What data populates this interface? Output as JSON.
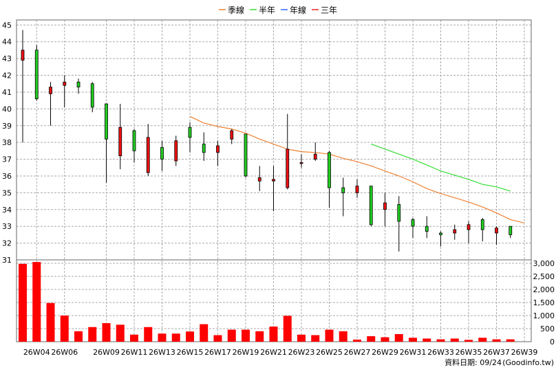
{
  "legend": [
    {
      "label": "季線",
      "color": "#f08030"
    },
    {
      "label": "半年",
      "color": "#33dd33"
    },
    {
      "label": "年線",
      "color": "#3366ff"
    },
    {
      "label": "三年",
      "color": "#ee2222"
    }
  ],
  "footer": {
    "date_label": "資料日期: 09/24",
    "source": "(Goodinfo.tw)"
  },
  "chart_data": {
    "type": "candlestick",
    "colors": {
      "up": "#ee1111",
      "down": "#22cc22",
      "volume": "#ff0000",
      "grid": "#aaaaaa"
    },
    "price_axis": {
      "ylim": [
        31,
        45.3
      ],
      "ticks": [
        31,
        32,
        33,
        34,
        35,
        36,
        37,
        38,
        39,
        40,
        41,
        42,
        43,
        44,
        45
      ]
    },
    "volume_axis": {
      "ylim": [
        0,
        3000
      ],
      "ticks": [
        0,
        500,
        1000,
        1500,
        2000,
        2500,
        3000
      ],
      "tick_labels": [
        "0",
        "500",
        "1,000",
        "1,500",
        "2,000",
        "2,500",
        "3,000"
      ]
    },
    "x_tick_labels": [
      {
        "week": 4,
        "label": "26W04"
      },
      {
        "week": 6,
        "label": "26W06"
      },
      {
        "week": 9,
        "label": "26W09"
      },
      {
        "week": 11,
        "label": "26W11"
      },
      {
        "week": 13,
        "label": "26W13"
      },
      {
        "week": 15,
        "label": "26W15"
      },
      {
        "week": 17,
        "label": "26W17"
      },
      {
        "week": 19,
        "label": "26W19"
      },
      {
        "week": 21,
        "label": "26W21"
      },
      {
        "week": 23,
        "label": "26W23"
      },
      {
        "week": 25,
        "label": "26W25"
      },
      {
        "week": 27,
        "label": "26W27"
      },
      {
        "week": 29,
        "label": "26W29"
      },
      {
        "week": 31,
        "label": "26W31"
      },
      {
        "week": 33,
        "label": "26W33"
      },
      {
        "week": 35,
        "label": "26W35"
      },
      {
        "week": 37,
        "label": "26W37"
      },
      {
        "week": 39,
        "label": "26W39"
      }
    ],
    "candles": [
      {
        "week": 3,
        "open": 42.9,
        "close": 43.5,
        "high": 44.7,
        "low": 38.0,
        "volume": 2980
      },
      {
        "week": 4,
        "open": 43.5,
        "close": 40.6,
        "high": 43.8,
        "low": 40.5,
        "volume": 3050
      },
      {
        "week": 5,
        "open": 40.9,
        "close": 41.3,
        "high": 41.6,
        "low": 39.0,
        "volume": 1480
      },
      {
        "week": 6,
        "open": 41.4,
        "close": 41.6,
        "high": 42.0,
        "low": 40.1,
        "volume": 1000
      },
      {
        "week": 7,
        "open": 41.6,
        "close": 41.3,
        "high": 41.8,
        "low": 40.9,
        "volume": 400
      },
      {
        "week": 8,
        "open": 41.5,
        "close": 40.1,
        "high": 41.6,
        "low": 39.8,
        "volume": 560
      },
      {
        "week": 9,
        "open": 40.3,
        "close": 38.2,
        "high": 40.3,
        "low": 35.6,
        "volume": 710
      },
      {
        "week": 10,
        "open": 37.2,
        "close": 38.9,
        "high": 40.3,
        "low": 36.4,
        "volume": 650
      },
      {
        "week": 11,
        "open": 38.7,
        "close": 37.5,
        "high": 38.8,
        "low": 36.8,
        "volume": 270
      },
      {
        "week": 12,
        "open": 36.2,
        "close": 38.3,
        "high": 39.1,
        "low": 36.0,
        "volume": 560
      },
      {
        "week": 13,
        "open": 37.7,
        "close": 37.0,
        "high": 38.1,
        "low": 36.3,
        "volume": 310
      },
      {
        "week": 14,
        "open": 36.9,
        "close": 38.1,
        "high": 38.4,
        "low": 36.6,
        "volume": 310
      },
      {
        "week": 15,
        "open": 38.9,
        "close": 38.3,
        "high": 39.2,
        "low": 37.4,
        "volume": 390
      },
      {
        "week": 16,
        "open": 37.9,
        "close": 37.4,
        "high": 38.6,
        "low": 36.9,
        "volume": 670
      },
      {
        "week": 17,
        "open": 37.4,
        "close": 37.8,
        "high": 38.1,
        "low": 36.6,
        "volume": 250
      },
      {
        "week": 18,
        "open": 38.2,
        "close": 38.7,
        "high": 38.8,
        "low": 37.9,
        "volume": 460
      },
      {
        "week": 19,
        "open": 38.5,
        "close": 36.0,
        "high": 38.5,
        "low": 35.9,
        "volume": 460
      },
      {
        "week": 20,
        "open": 35.7,
        "close": 35.9,
        "high": 36.6,
        "low": 35.1,
        "volume": 400
      },
      {
        "week": 21,
        "open": 35.7,
        "close": 35.8,
        "high": 36.6,
        "low": 33.9,
        "volume": 580
      },
      {
        "week": 22,
        "open": 35.3,
        "close": 37.6,
        "high": 39.7,
        "low": 35.2,
        "volume": 990
      },
      {
        "week": 23,
        "open": 36.8,
        "close": 36.8,
        "high": 37.3,
        "low": 36.5,
        "volume": 270
      },
      {
        "week": 24,
        "open": 37.0,
        "close": 37.3,
        "high": 38.0,
        "low": 36.9,
        "volume": 250
      },
      {
        "week": 25,
        "open": 37.4,
        "close": 35.3,
        "high": 37.5,
        "low": 34.1,
        "volume": 460
      },
      {
        "week": 26,
        "open": 35.3,
        "close": 35.0,
        "high": 35.9,
        "low": 33.6,
        "volume": 400
      },
      {
        "week": 27,
        "open": 35.0,
        "close": 35.4,
        "high": 35.8,
        "low": 34.7,
        "volume": 80
      },
      {
        "week": 28,
        "open": 35.4,
        "close": 33.1,
        "high": 35.4,
        "low": 33.0,
        "volume": 210
      },
      {
        "week": 29,
        "open": 34.0,
        "close": 34.4,
        "high": 35.0,
        "low": 33.0,
        "volume": 170
      },
      {
        "week": 30,
        "open": 34.3,
        "close": 33.3,
        "high": 34.8,
        "low": 31.5,
        "volume": 290
      },
      {
        "week": 31,
        "open": 33.4,
        "close": 33.0,
        "high": 33.5,
        "low": 32.3,
        "volume": 150
      },
      {
        "week": 32,
        "open": 33.0,
        "close": 32.7,
        "high": 33.6,
        "low": 32.3,
        "volume": 120
      },
      {
        "week": 33,
        "open": 32.6,
        "close": 32.5,
        "high": 32.7,
        "low": 31.8,
        "volume": 90
      },
      {
        "week": 34,
        "open": 32.6,
        "close": 32.8,
        "high": 33.1,
        "low": 32.2,
        "volume": 120
      },
      {
        "week": 35,
        "open": 32.8,
        "close": 33.1,
        "high": 33.3,
        "low": 32.0,
        "volume": 70
      },
      {
        "week": 36,
        "open": 33.4,
        "close": 32.8,
        "high": 33.5,
        "low": 32.1,
        "volume": 150
      },
      {
        "week": 37,
        "open": 32.6,
        "close": 32.9,
        "high": 33.0,
        "low": 31.9,
        "volume": 90
      },
      {
        "week": 38,
        "open": 33.0,
        "close": 32.5,
        "high": 33.0,
        "low": 32.3,
        "volume": 90
      }
    ],
    "moving_averages": [
      {
        "label": "季線",
        "color": "#f08030",
        "points": [
          [
            15,
            39.55
          ],
          [
            16,
            39.15
          ],
          [
            17,
            38.95
          ],
          [
            18,
            38.8
          ],
          [
            19,
            38.55
          ],
          [
            20,
            38.2
          ],
          [
            21,
            37.9
          ],
          [
            22,
            37.6
          ],
          [
            23,
            37.45
          ],
          [
            24,
            37.4
          ],
          [
            25,
            37.3
          ],
          [
            26,
            37.05
          ],
          [
            27,
            36.85
          ],
          [
            28,
            36.6
          ],
          [
            29,
            36.3
          ],
          [
            30,
            36.0
          ],
          [
            31,
            35.65
          ],
          [
            32,
            35.25
          ],
          [
            33,
            34.95
          ],
          [
            34,
            34.7
          ],
          [
            35,
            34.45
          ],
          [
            36,
            34.15
          ],
          [
            37,
            33.8
          ],
          [
            38,
            33.4
          ],
          [
            39,
            33.2
          ]
        ]
      },
      {
        "label": "半年",
        "color": "#33dd33",
        "points": [
          [
            28,
            37.9
          ],
          [
            29,
            37.6
          ],
          [
            30,
            37.3
          ],
          [
            31,
            37.0
          ],
          [
            32,
            36.65
          ],
          [
            33,
            36.3
          ],
          [
            34,
            36.05
          ],
          [
            35,
            35.8
          ],
          [
            36,
            35.5
          ],
          [
            37,
            35.35
          ],
          [
            38,
            35.1
          ]
        ]
      }
    ]
  }
}
